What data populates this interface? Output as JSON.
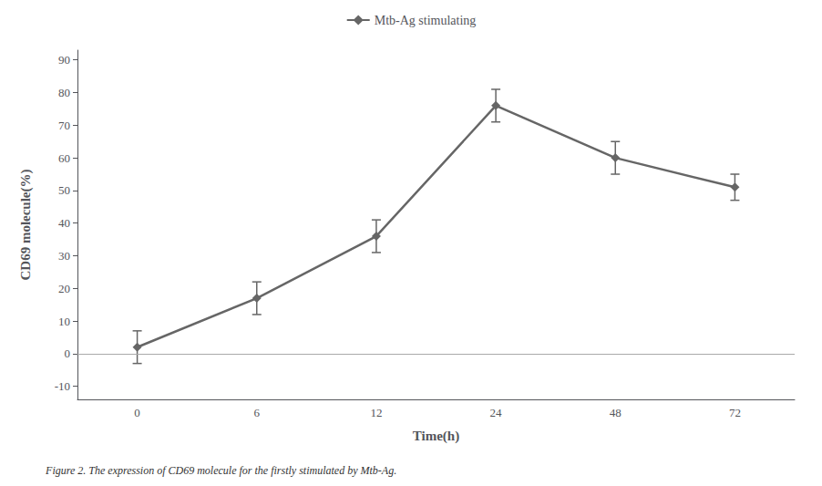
{
  "chart_data": {
    "type": "line",
    "xlabel": "Time(h)",
    "ylabel": "CD69 molecule(%)",
    "categories": [
      "0",
      "6",
      "12",
      "24",
      "48",
      "72"
    ],
    "series": [
      {
        "name": "Mtb-Ag stimulating",
        "color": "#666666",
        "marker": "diamond",
        "values": [
          2,
          17,
          36,
          76,
          60,
          51
        ],
        "yerr": [
          5,
          5,
          5,
          5,
          5,
          4
        ]
      }
    ],
    "ylim": [
      -14,
      93
    ],
    "yticks": [
      -10,
      0,
      10,
      20,
      30,
      40,
      50,
      60,
      70,
      80,
      90
    ],
    "grid": false,
    "legend": "top",
    "hline": {
      "y": 0,
      "color": "#aaaaaa"
    },
    "caption": "Figure 2. The expression of CD69 molecule for the firstly stimulated by Mtb-Ag."
  }
}
